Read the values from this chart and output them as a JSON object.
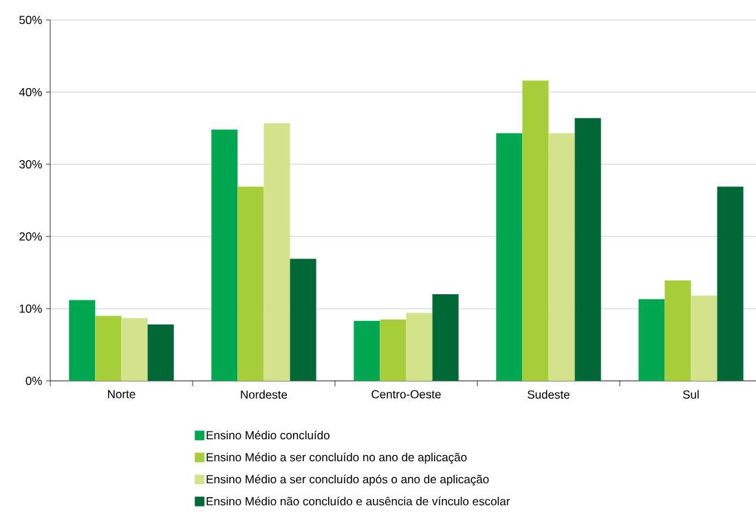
{
  "chart_data": {
    "type": "bar",
    "categories": [
      "Norte",
      "Nordeste",
      "Centro-Oeste",
      "Sudeste",
      "Sul"
    ],
    "series": [
      {
        "name": "Ensino Médio concluído",
        "color": "#00a650",
        "values": [
          11.2,
          34.8,
          8.3,
          34.3,
          11.3
        ]
      },
      {
        "name": "Ensino Médio a ser concluído no ano de aplicação",
        "color": "#a6ce39",
        "values": [
          9.0,
          26.9,
          8.5,
          41.6,
          13.9
        ]
      },
      {
        "name": "Ensino Médio a ser concluído após o ano de aplicação",
        "color": "#d3e28b",
        "values": [
          8.7,
          35.7,
          9.4,
          34.3,
          11.8
        ]
      },
      {
        "name": "Ensino Médio não concluído e ausência de vínculo escolar",
        "color": "#006837",
        "values": [
          7.8,
          16.9,
          12.0,
          36.4,
          26.9
        ]
      }
    ],
    "ylim": [
      0,
      50
    ],
    "yticks": [
      {
        "value": 0,
        "label": "0%"
      },
      {
        "value": 10,
        "label": "10%"
      },
      {
        "value": 20,
        "label": "20%"
      },
      {
        "value": 30,
        "label": "30%"
      },
      {
        "value": 40,
        "label": "40%"
      },
      {
        "value": 50,
        "label": "50%"
      }
    ],
    "grid": "y",
    "legend": "bottom"
  }
}
